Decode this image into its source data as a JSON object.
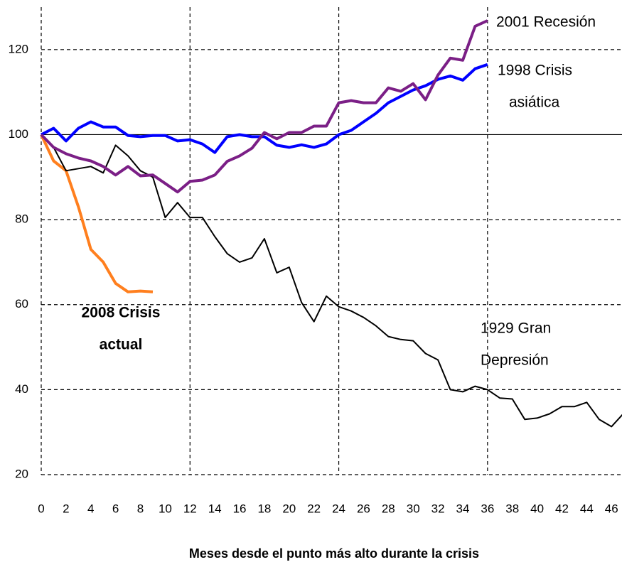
{
  "chart_data": {
    "type": "line",
    "x_label": "Meses desde el punto más alto durante la crisis",
    "x": [
      0,
      1,
      2,
      3,
      4,
      5,
      6,
      7,
      8,
      9,
      10,
      11,
      12,
      13,
      14,
      15,
      16,
      17,
      18,
      19,
      20,
      21,
      22,
      23,
      24,
      25,
      26,
      27,
      28,
      29,
      30,
      31,
      32,
      33,
      34,
      35,
      36,
      37,
      38,
      39,
      40,
      41,
      42,
      43,
      44,
      45,
      46,
      47
    ],
    "series": [
      {
        "label_lines": [
          "1929 Gran",
          "Depresión"
        ],
        "color": "#000000",
        "width": 2,
        "values": [
          100,
          97,
          91.5,
          92,
          92.5,
          91,
          97.5,
          95,
          91.5,
          90,
          80.5,
          84,
          80.5,
          80.5,
          76,
          72,
          70,
          71,
          75.5,
          67.5,
          68.8,
          60.5,
          56,
          62,
          59.5,
          58.5,
          57,
          55,
          52.5,
          51.8,
          51.5,
          48.5,
          47,
          40,
          39.5,
          40.8,
          40,
          38,
          37.8,
          33,
          33.3,
          34.3,
          36,
          36,
          37,
          33,
          31.3,
          34.5
        ]
      },
      {
        "label_lines": [
          "1998 Crisis",
          "asiática"
        ],
        "color": "#0000ff",
        "width": 4,
        "values": [
          100,
          101.5,
          98.5,
          101.5,
          103,
          101.8,
          101.8,
          99.8,
          99.5,
          99.8,
          99.8,
          98.5,
          98.8,
          97.8,
          95.8,
          99.5,
          100,
          99.5,
          99.5,
          97.5,
          97,
          97.6,
          97,
          97.8,
          100,
          101,
          103,
          105,
          107.5,
          109,
          110.5,
          111.5,
          113,
          113.8,
          112.8,
          115.5,
          116.5,
          null,
          null,
          null,
          null,
          null,
          null,
          null,
          null,
          null,
          null,
          null
        ]
      },
      {
        "label_lines": [
          "2001 Recesión"
        ],
        "color": "#7b1f86",
        "width": 4,
        "values": [
          100,
          97,
          95.5,
          94.5,
          93.8,
          92.5,
          90.5,
          92.5,
          90.3,
          90.5,
          88.5,
          86.5,
          89,
          89.3,
          90.5,
          93.7,
          95,
          96.8,
          100.5,
          99,
          100.5,
          100.5,
          102,
          102,
          107.5,
          108,
          107.5,
          107.5,
          111,
          110.2,
          112,
          108.2,
          114,
          118,
          117.5,
          125.5,
          126.8,
          null,
          null,
          null,
          null,
          null,
          null,
          null,
          null,
          null,
          null,
          null
        ]
      },
      {
        "label_lines": [
          "2008 Crisis",
          "actual"
        ],
        "color": "#ff7f1e",
        "width": 4,
        "bold": true,
        "values": [
          100,
          93.8,
          91.5,
          83,
          73,
          70,
          65,
          63,
          63.2,
          63,
          null,
          null,
          null,
          null,
          null,
          null,
          null,
          null,
          null,
          null,
          null,
          null,
          null,
          null,
          null,
          null,
          null,
          null,
          null,
          null,
          null,
          null,
          null,
          null,
          null,
          null,
          null,
          null,
          null,
          null,
          null,
          null,
          null,
          null,
          null,
          null,
          null,
          null
        ]
      }
    ],
    "xlim": [
      0,
      47
    ],
    "ylim": [
      20,
      130
    ],
    "xticks": [
      0,
      2,
      4,
      6,
      8,
      10,
      12,
      14,
      16,
      18,
      20,
      22,
      24,
      26,
      28,
      30,
      32,
      34,
      36,
      38,
      40,
      42,
      44,
      46
    ],
    "yticks": [
      20,
      40,
      60,
      80,
      100,
      120
    ],
    "x_grid": [
      0,
      12,
      24,
      36
    ],
    "reference_line": 100
  }
}
